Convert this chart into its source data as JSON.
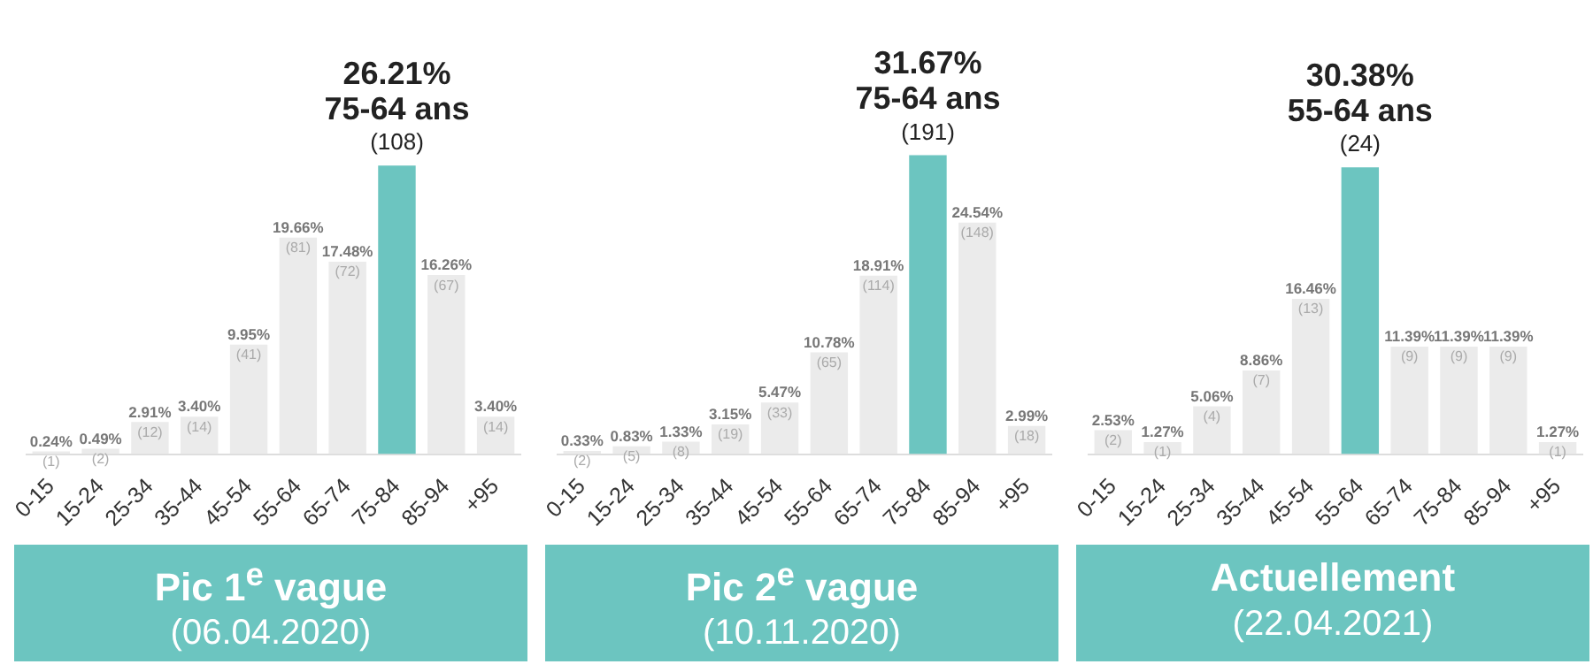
{
  "chart_data": [
    {
      "type": "bar",
      "title": "Pic 1$^{e}$ vague",
      "subtitle": "(06.04.2020)",
      "tick_labels": "x",
      "categories": [
        "0-15",
        "15-24",
        "25-34",
        "35-44",
        "45-54",
        "55-64",
        "65-74",
        "75-84",
        "85-94",
        "+95"
      ],
      "values": [
        0.24,
        0.49,
        2.91,
        3.4,
        9.95,
        19.66,
        17.48,
        26.21,
        16.26,
        3.4
      ],
      "colors": [
        "#ebebeb",
        "#ebebeb",
        "#ebebeb",
        "#ebebeb",
        "#ebebeb",
        "#ebebeb",
        "#ebebeb",
        "#6cc5c0",
        "#ebebeb",
        "#ebebeb"
      ],
      "value_labels": [
        "0.24%\n(1)",
        "0.49%\n(2)",
        "2.91%\n(12)",
        "3.40%\n(14)",
        "9.95%\n(41)",
        "19.66%\n(81)",
        "17.48%\n(72)",
        "26.21%\n75-64 ans\n(108)",
        "16.26%\n(67)",
        "3.40%\n(14)"
      ]
    },
    {
      "type": "bar",
      "title": "Pic 2$^{e}$ vague",
      "subtitle": "(10.11.2020)",
      "tick_labels": "x",
      "categories": [
        "0-15",
        "15-24",
        "25-34",
        "35-44",
        "45-54",
        "55-64",
        "65-74",
        "75-84",
        "85-94",
        "+95"
      ],
      "values": [
        0.33,
        0.83,
        1.33,
        3.15,
        5.47,
        10.78,
        18.91,
        31.67,
        24.54,
        2.99
      ],
      "colors": [
        "#ebebeb",
        "#ebebeb",
        "#ebebeb",
        "#ebebeb",
        "#ebebeb",
        "#ebebeb",
        "#ebebeb",
        "#6cc5c0",
        "#ebebeb",
        "#ebebeb"
      ],
      "value_labels": [
        "0.33%\n(2)",
        "0.83%\n(5)",
        "1.33%\n(8)",
        "3.15%\n(19)",
        "5.47%\n(33)",
        "10.78%\n(65)",
        "18.91%\n(114)",
        "31.67%\n75-64 ans\n(191)",
        "24.54%\n(148)",
        "2.99%\n(18)"
      ]
    },
    {
      "type": "bar",
      "title": "Actuellement",
      "subtitle": "(22.04.2021)",
      "tick_labels": "x",
      "categories": [
        "0-15",
        "15-24",
        "25-34",
        "35-44",
        "45-54",
        "55-64",
        "65-74",
        "75-84",
        "85-94",
        "+95"
      ],
      "values": [
        2.53,
        1.27,
        5.06,
        8.86,
        16.46,
        30.38,
        11.39,
        11.39,
        11.39,
        1.27
      ],
      "colors": [
        "#ebebeb",
        "#ebebeb",
        "#ebebeb",
        "#ebebeb",
        "#ebebeb",
        "#6cc5c0",
        "#ebebeb",
        "#ebebeb",
        "#ebebeb",
        "#ebebeb"
      ],
      "value_labels": [
        "2.53%\n(2)",
        "1.27%\n(1)",
        "5.06%\n(4)",
        "8.86%\n(7)",
        "16.46%\n(13)",
        "30.38%\n55-64 ans\n(24)",
        "11.39%\n(9)",
        "11.39%\n(9)",
        "11.39%\n(9)",
        "1.27%\n(1)"
      ]
    }
  ]
}
